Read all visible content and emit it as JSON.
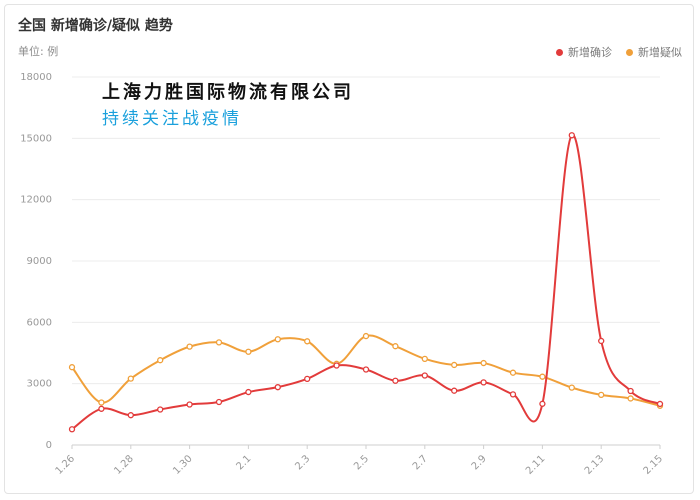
{
  "chart_data": {
    "type": "line",
    "title": "全国 新增确诊/疑似 趋势",
    "unit_label": "单位: 例",
    "xlabel": "",
    "ylabel": "",
    "ylim": [
      0,
      18000
    ],
    "yticks": [
      "0",
      "3000",
      "6000",
      "9000",
      "12000",
      "15000",
      "18000"
    ],
    "yticks_values": [
      0,
      3000,
      6000,
      9000,
      12000,
      15000,
      18000
    ],
    "x": [
      "1.26",
      "1.27",
      "1.28",
      "1.29",
      "1.30",
      "1.31",
      "2.1",
      "2.2",
      "2.3",
      "2.4",
      "2.5",
      "2.6",
      "2.7",
      "2.8",
      "2.9",
      "2.10",
      "2.11",
      "2.12",
      "2.13",
      "2.14",
      "2.15"
    ],
    "xtick_labels": [
      "1.26",
      "1.28",
      "1.30",
      "2.1",
      "2.3",
      "2.5",
      "2.7",
      "2.9",
      "2.11",
      "2.13",
      "2.15"
    ],
    "grid": true,
    "legend_position": "top-right",
    "series": [
      {
        "name": "新增确诊",
        "color": "#e23b3b",
        "values": [
          769,
          1771,
          1459,
          1737,
          1982,
          2102,
          2590,
          2829,
          3235,
          3887,
          3694,
          3143,
          3399,
          2656,
          3062,
          2478,
          2015,
          15152,
          5090,
          2641,
          2009
        ]
      },
      {
        "name": "新增疑似",
        "color": "#f0a03a",
        "values": [
          3806,
          2077,
          3248,
          4148,
          4812,
          5019,
          4562,
          5173,
          5072,
          3971,
          5328,
          4833,
          4214,
          3916,
          4008,
          3536,
          3342,
          2807,
          2450,
          2277,
          1918
        ]
      }
    ]
  },
  "overlay": {
    "company": "上海力胜国际物流有限公司",
    "slogan": "持续关注战疫情"
  }
}
